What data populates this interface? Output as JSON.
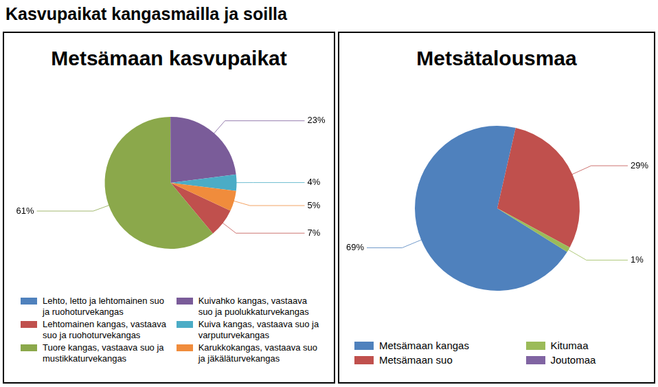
{
  "title": "Kasvupaikat kangasmailla ja soilla",
  "chart_data": [
    {
      "type": "pie",
      "title": "Metsämaan kasvupaikat",
      "categories": [
        "Lehto, letto ja lehtomainen suo ja ruohoturvekangas",
        "Lehtomainen kangas, vastaava suo ja ruohoturvekangas",
        "Tuore kangas, vastaava suo ja mustikkaturvekangas",
        "Kuivahko kangas, vastaava suo ja puolukkaturvekangas",
        "Kuiva kangas, vastaava suo ja varputurvekangas",
        "Karukkokangas, vastaava suo ja jäkäläturvekangas"
      ],
      "values": [
        0,
        7,
        61,
        23,
        4,
        5
      ],
      "value_labels": [
        null,
        "7%",
        "61%",
        "23%",
        "4%",
        "5%"
      ],
      "colors": [
        "#4f81bd",
        "#c0504d",
        "#8ba84b",
        "#7a5c99",
        "#4bacc6",
        "#f08c3c"
      ],
      "data_labels": true,
      "legend": "bottom"
    },
    {
      "type": "pie",
      "title": "Metsätalousmaa",
      "categories": [
        "Metsämaan kangas",
        "Metsämaan suo",
        "Kitumaa",
        "Joutomaa"
      ],
      "values": [
        69,
        29,
        1,
        0
      ],
      "value_labels": [
        "69%",
        "29%",
        "1%",
        null
      ],
      "colors": [
        "#4f81bd",
        "#c0504d",
        "#9bbb59",
        "#8064a2"
      ],
      "data_labels": true,
      "legend": "bottom"
    }
  ]
}
